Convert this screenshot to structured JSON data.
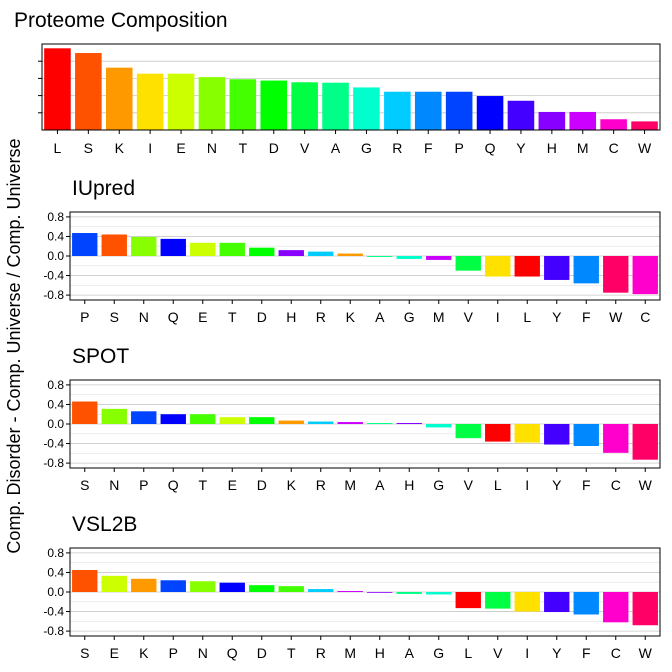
{
  "y_axis_label": "Comp. Disorder - Comp. Universe / Comp. Universe",
  "colors": {
    "L": "#FF0000",
    "S": "#FF5200",
    "K": "#FF9900",
    "I": "#FFE100",
    "E": "#CCFF00",
    "N": "#88FF00",
    "T": "#44FF00",
    "D": "#00FF00",
    "V": "#00FF44",
    "A": "#00FF88",
    "G": "#00FFCC",
    "R": "#00CCFF",
    "F": "#0088FF",
    "P": "#0044FF",
    "Q": "#0000FF",
    "Y": "#4400FF",
    "H": "#8800FF",
    "M": "#CC00FF",
    "C": "#FF00CC",
    "W": "#FF0066"
  },
  "chart_data": [
    {
      "type": "bar",
      "title": "Proteome Composition",
      "categories": [
        "L",
        "S",
        "K",
        "I",
        "E",
        "N",
        "T",
        "D",
        "V",
        "A",
        "G",
        "R",
        "F",
        "P",
        "Q",
        "Y",
        "H",
        "M",
        "C",
        "W"
      ],
      "values": [
        0.095,
        0.0895,
        0.0725,
        0.0655,
        0.0655,
        0.0615,
        0.059,
        0.0575,
        0.0555,
        0.055,
        0.0495,
        0.0445,
        0.0445,
        0.0445,
        0.0395,
        0.034,
        0.021,
        0.021,
        0.0125,
        0.01
      ],
      "ylim": [
        0,
        0.1
      ],
      "yticks": [],
      "grid": true
    },
    {
      "type": "bar",
      "title": "IUpred",
      "categories": [
        "P",
        "S",
        "N",
        "Q",
        "E",
        "T",
        "D",
        "H",
        "R",
        "K",
        "A",
        "G",
        "M",
        "V",
        "I",
        "L",
        "Y",
        "F",
        "W",
        "C"
      ],
      "values": [
        0.47,
        0.44,
        0.39,
        0.35,
        0.27,
        0.27,
        0.17,
        0.12,
        0.09,
        0.05,
        -0.02,
        -0.06,
        -0.08,
        -0.3,
        -0.42,
        -0.42,
        -0.49,
        -0.56,
        -0.75,
        -0.78
      ],
      "ylim": [
        -0.9,
        0.9
      ],
      "yticks": [
        "0.8",
        "0.4",
        "0.0",
        "-0.4",
        "-0.8"
      ],
      "grid": true
    },
    {
      "type": "bar",
      "title": "SPOT",
      "categories": [
        "S",
        "N",
        "P",
        "Q",
        "T",
        "E",
        "D",
        "K",
        "R",
        "M",
        "A",
        "H",
        "G",
        "V",
        "L",
        "I",
        "Y",
        "F",
        "C",
        "W"
      ],
      "values": [
        0.46,
        0.31,
        0.26,
        0.2,
        0.2,
        0.14,
        0.14,
        0.07,
        0.05,
        0.04,
        0.02,
        0.02,
        -0.07,
        -0.29,
        -0.36,
        -0.38,
        -0.42,
        -0.45,
        -0.59,
        -0.73
      ],
      "ylim": [
        -0.9,
        0.9
      ],
      "yticks": [
        "0.8",
        "0.4",
        "0.0",
        "-0.4",
        "-0.8"
      ],
      "grid": true
    },
    {
      "type": "bar",
      "title": "VSL2B",
      "categories": [
        "S",
        "E",
        "K",
        "P",
        "N",
        "Q",
        "D",
        "T",
        "R",
        "M",
        "H",
        "A",
        "G",
        "L",
        "V",
        "I",
        "Y",
        "F",
        "C",
        "W"
      ],
      "values": [
        0.45,
        0.33,
        0.27,
        0.24,
        0.22,
        0.19,
        0.14,
        0.12,
        0.06,
        0.02,
        -0.01,
        -0.04,
        -0.05,
        -0.33,
        -0.34,
        -0.4,
        -0.41,
        -0.46,
        -0.62,
        -0.68
      ],
      "ylim": [
        -0.9,
        0.9
      ],
      "yticks": [
        "0.8",
        "0.4",
        "0.0",
        "-0.4",
        "-0.8"
      ],
      "grid": true
    }
  ]
}
